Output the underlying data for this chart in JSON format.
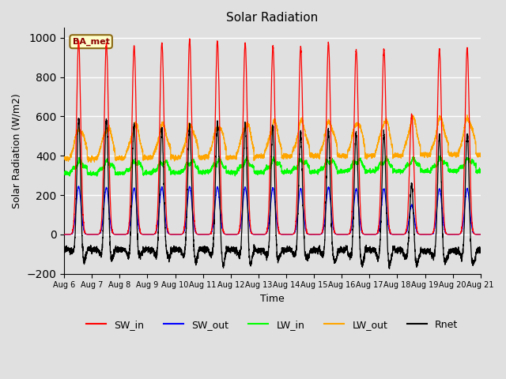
{
  "title": "Solar Radiation",
  "xlabel": "Time",
  "ylabel": "Solar Radiation (W/m2)",
  "ylim": [
    -200,
    1050
  ],
  "yticks": [
    -200,
    0,
    200,
    400,
    600,
    800,
    1000
  ],
  "start_day": 6,
  "end_day": 21,
  "n_days": 15,
  "annotation": "BA_met",
  "colors": {
    "SW_in": "#ff0000",
    "SW_out": "#0000ff",
    "LW_in": "#00ff00",
    "LW_out": "#ffa500",
    "Rnet": "#000000"
  },
  "legend_labels": [
    "SW_in",
    "SW_out",
    "LW_in",
    "LW_out",
    "Rnet"
  ],
  "bg_color": "#e0e0e0",
  "gridcolor": "#ffffff",
  "n_points_per_day": 288,
  "figwidth": 6.4,
  "figheight": 4.8,
  "dpi": 100
}
